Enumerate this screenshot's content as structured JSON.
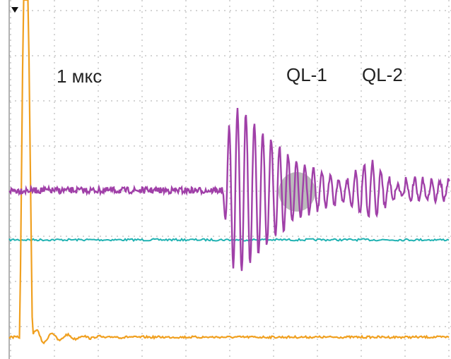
{
  "labels": {
    "timebase": "1 мкс",
    "ql1": "QL-1",
    "ql2": "QL-2"
  }
}
